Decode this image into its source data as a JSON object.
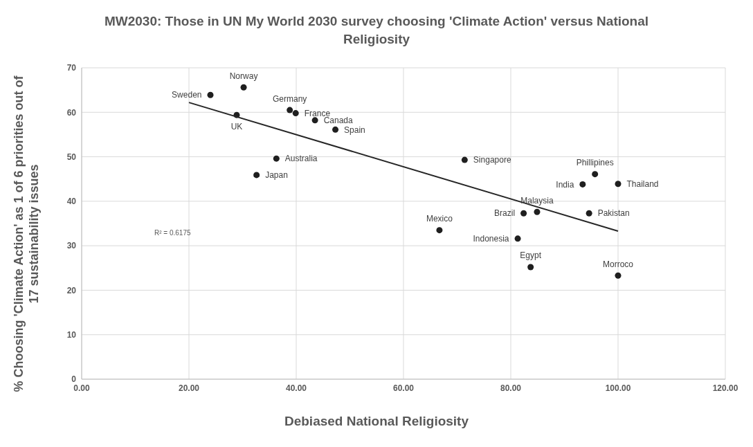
{
  "chart_data": {
    "type": "scatter",
    "title": "MW2030: Those in UN My World 2030 survey choosing 'Climate Action' versus National Religiosity",
    "xlabel": "Debiased National Religiosity",
    "ylabel": "% Choosing 'Climate Action' as 1 of 6 priorities out of 17 sustainability issues",
    "annotations": [
      "R² = 0.6175"
    ],
    "xlim": [
      0,
      120
    ],
    "xticks": [
      {
        "value": 0,
        "label": "0.00"
      },
      {
        "value": 20,
        "label": "20.00"
      },
      {
        "value": 40,
        "label": "40.00"
      },
      {
        "value": 60,
        "label": "60.00"
      },
      {
        "value": 80,
        "label": "80.00"
      },
      {
        "value": 100,
        "label": "100.00"
      },
      {
        "value": 120,
        "label": "120.00"
      }
    ],
    "ylim": [
      0,
      70
    ],
    "yticks": [
      0,
      10,
      20,
      30,
      40,
      50,
      60,
      70
    ],
    "grid": true,
    "marker": "circle",
    "series": [
      {
        "name": "Sweden",
        "color": "#1f1f1f",
        "x": [
          24.0
        ],
        "values": [
          63.9
        ]
      },
      {
        "name": "Norway",
        "color": "#1f1f1f",
        "x": [
          30.2
        ],
        "values": [
          65.6
        ]
      },
      {
        "name": "UK",
        "color": "#1f1f1f",
        "x": [
          28.9
        ],
        "values": [
          59.4
        ]
      },
      {
        "name": "Germany",
        "color": "#1f1f1f",
        "x": [
          38.8
        ],
        "values": [
          60.5
        ]
      },
      {
        "name": "France",
        "color": "#1f1f1f",
        "x": [
          39.9
        ],
        "values": [
          59.8
        ]
      },
      {
        "name": "Canada",
        "color": "#1f1f1f",
        "x": [
          43.5
        ],
        "values": [
          58.2
        ]
      },
      {
        "name": "Spain",
        "color": "#1f1f1f",
        "x": [
          47.3
        ],
        "values": [
          56.1
        ]
      },
      {
        "name": "Australia",
        "color": "#1f1f1f",
        "x": [
          36.3
        ],
        "values": [
          49.6
        ]
      },
      {
        "name": "Japan",
        "color": "#1f1f1f",
        "x": [
          32.6
        ],
        "values": [
          45.9
        ]
      },
      {
        "name": "Singapore",
        "color": "#1f1f1f",
        "x": [
          71.4
        ],
        "values": [
          49.3
        ]
      },
      {
        "name": "Phillipines",
        "color": "#1f1f1f",
        "x": [
          95.7
        ],
        "values": [
          46.1
        ]
      },
      {
        "name": "India",
        "color": "#1f1f1f",
        "x": [
          93.4
        ],
        "values": [
          43.8
        ]
      },
      {
        "name": "Thailand",
        "color": "#1f1f1f",
        "x": [
          100.0
        ],
        "values": [
          43.9
        ]
      },
      {
        "name": "Malaysia",
        "color": "#1f1f1f",
        "x": [
          84.9
        ],
        "values": [
          37.6
        ]
      },
      {
        "name": "Brazil",
        "color": "#1f1f1f",
        "x": [
          82.4
        ],
        "values": [
          37.3
        ]
      },
      {
        "name": "Pakistan",
        "color": "#1f1f1f",
        "x": [
          94.6
        ],
        "values": [
          37.3
        ]
      },
      {
        "name": "Mexico",
        "color": "#1f1f1f",
        "x": [
          66.7
        ],
        "values": [
          33.5
        ]
      },
      {
        "name": "Indonesia",
        "color": "#1f1f1f",
        "x": [
          81.3
        ],
        "values": [
          31.6
        ]
      },
      {
        "name": "Egypt",
        "color": "#1f1f1f",
        "x": [
          83.7
        ],
        "values": [
          25.2
        ]
      },
      {
        "name": "Morroco",
        "color": "#1f1f1f",
        "x": [
          100.0
        ],
        "values": [
          23.3
        ]
      },
      {
        "type": "line",
        "marker": "none",
        "color": "#262626",
        "x": [
          20,
          100
        ],
        "values": [
          62.2,
          33.3
        ]
      }
    ]
  }
}
